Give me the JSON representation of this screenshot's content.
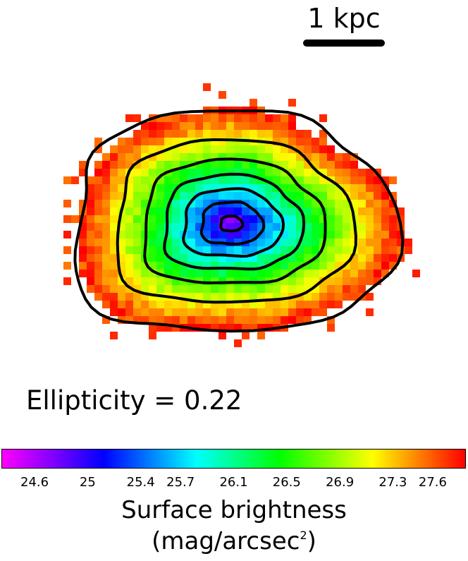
{
  "chart_data": {
    "type": "heatmap",
    "title": "",
    "scale_bar_label": "1 kpc",
    "annotation": "Ellipticity = 0.22",
    "colorbar": {
      "min": 24.35,
      "max": 27.85,
      "ticks": [
        "24.6",
        "25",
        "25.4",
        "25.7",
        "26.1",
        "26.5",
        "26.9",
        "27.3",
        "27.6"
      ],
      "tick_values": [
        24.6,
        25.0,
        25.4,
        25.7,
        26.1,
        26.5,
        26.9,
        27.3,
        27.6
      ],
      "label": "Surface brightness",
      "unit_prefix": "(mag/arcsec",
      "unit_exponent": "2",
      "unit_suffix": ")",
      "colormap": [
        "#ff00ff",
        "#0000ff",
        "#00ffff",
        "#00ff00",
        "#ffff00",
        "#ff0000"
      ]
    },
    "center_value": 24.5,
    "edge_value": 27.8,
    "ellipticity": 0.22,
    "contour_levels": [
      24.9,
      25.4,
      25.8,
      26.2,
      26.6,
      27.1,
      27.8
    ]
  }
}
